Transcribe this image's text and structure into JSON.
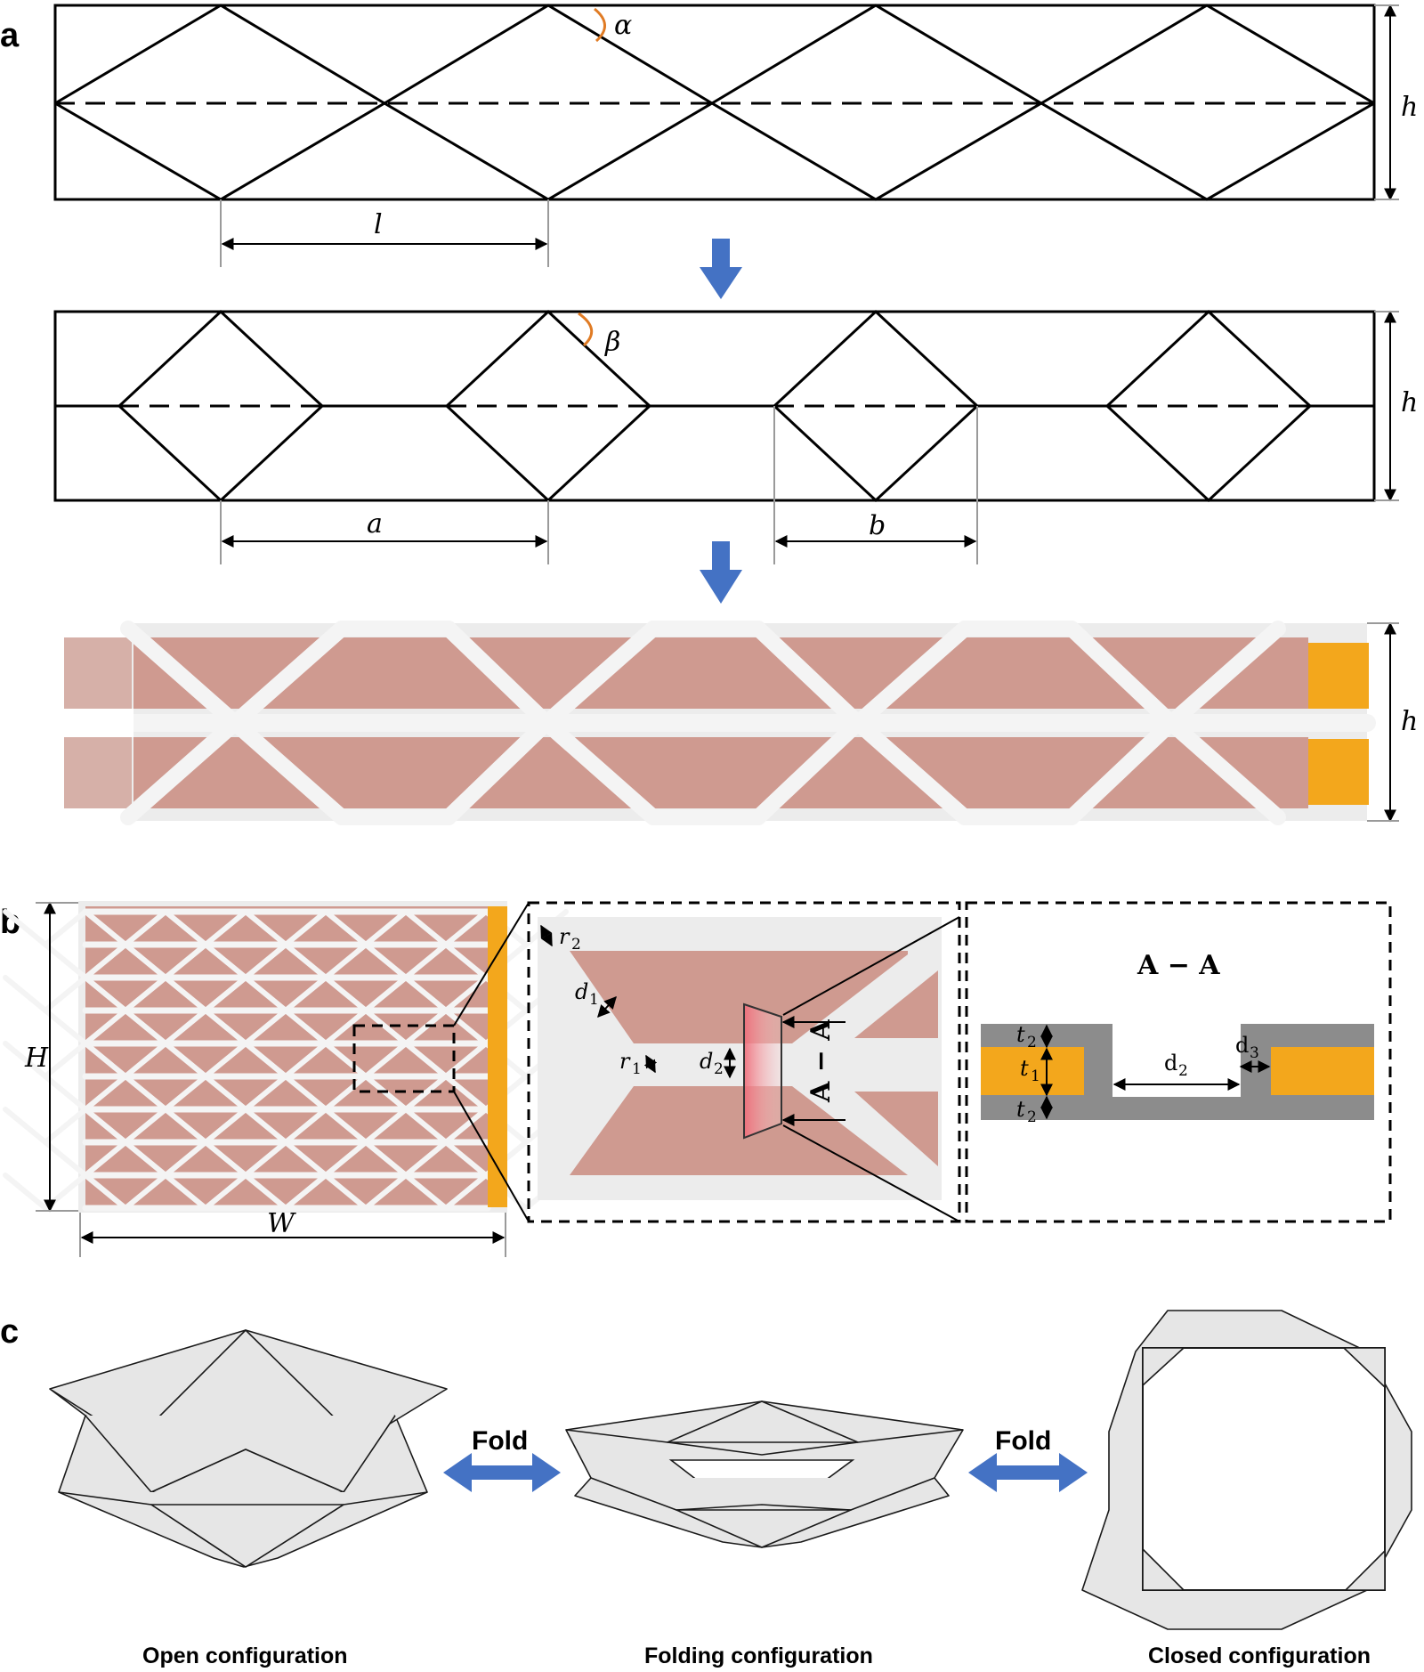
{
  "panels": {
    "a": {
      "label": "a",
      "angle_alpha": "α",
      "angle_beta": "β",
      "dim_h": "h",
      "dim_l": "l",
      "dim_a": "a",
      "dim_b": "b"
    },
    "b": {
      "label": "b",
      "dim_H": "H",
      "dim_W": "W",
      "r": "r",
      "d": "d",
      "t": "t",
      "sub1": "1",
      "sub2": "2",
      "sub3": "3",
      "section_label": "A − A",
      "section_cut": "A − A"
    },
    "c": {
      "label": "c",
      "fold_label": "Fold",
      "captions": [
        "Open configuration",
        "Folding configuration",
        "Closed configuration"
      ]
    }
  },
  "colors": {
    "arrow_blue": "#4472c4",
    "angle_orange": "#e07b24",
    "copper_cell": "#cf9a90",
    "electrode_gold": "#f3a71c",
    "frame_gray": "#ececec",
    "section_gray": "#8c8c8c"
  }
}
